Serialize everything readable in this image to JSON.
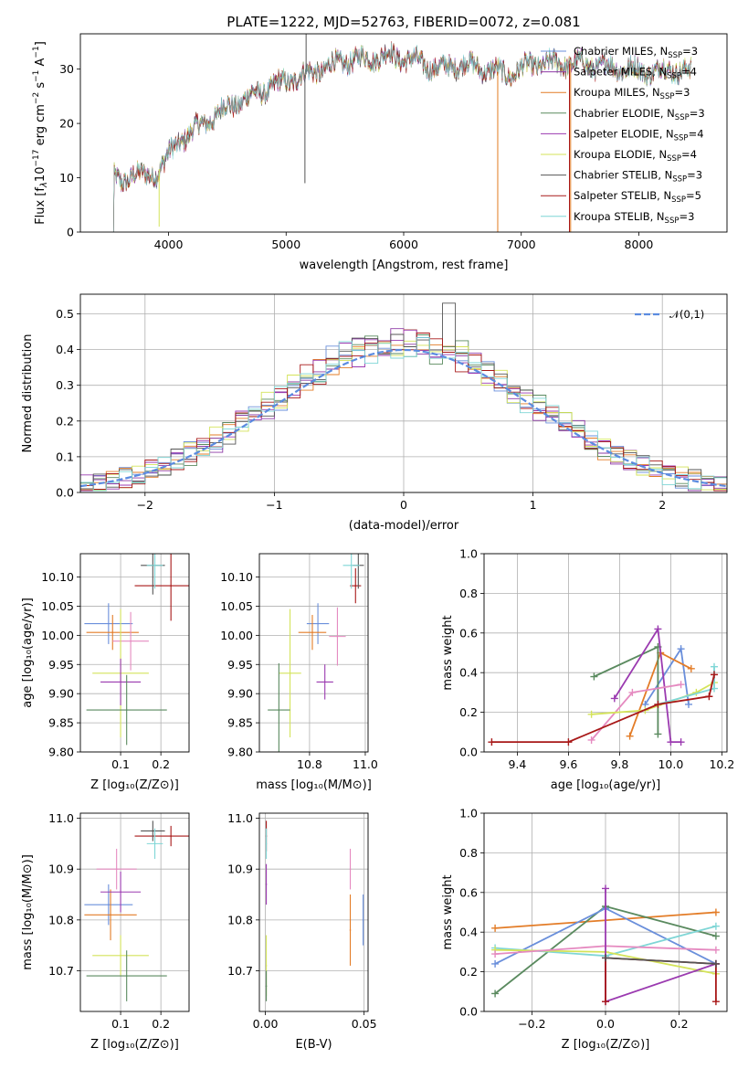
{
  "title": "PLATE=1222, MJD=52763, FIBERID=0072, z=0.081",
  "colors": {
    "Chabrier MILES": "#6a8fdb",
    "Salpeter MILES": "#8e3aa6",
    "Kroupa MILES": "#e37c27",
    "Chabrier ELODIE": "#5a8a5f",
    "Salpeter ELODIE": "#9b3ab0",
    "Kroupa ELODIE": "#d4e35a",
    "Chabrier STELIB": "#555555",
    "Salpeter STELIB": "#a81818",
    "Kroupa STELIB": "#7fd6d6",
    "normal": "#5b8be0",
    "pink": "#e58ac0"
  },
  "chart_data": [
    {
      "id": "spectrum",
      "type": "line",
      "xlabel": "wavelength [Angstrom, rest frame]",
      "ylabel_html": "Flux [f<tspan font-style='italic' font-size='10' dy='3'>λ</tspan><tspan dy='-3'>10</tspan><tspan font-size='9' dy='-6'>−17</tspan><tspan dy='6'> erg cm</tspan><tspan font-size='9' dy='-6'>−2</tspan><tspan dy='6'> s</tspan><tspan font-size='9' dy='-6'>−1</tspan><tspan dy='6'> A</tspan><tspan font-size='9' dy='-6'>−1</tspan><tspan dy='6'>]</tspan>",
      "xlim": [
        3250,
        8750
      ],
      "ylim": [
        0,
        36.5
      ],
      "xticks": [
        4000,
        5000,
        6000,
        7000,
        8000
      ],
      "yticks": [
        0,
        10,
        20,
        30
      ],
      "grid": false,
      "legend_position": "top-right",
      "legend": [
        {
          "name": "Chabrier MILES",
          "nssp": "3"
        },
        {
          "name": "Salpeter MILES",
          "nssp": "4"
        },
        {
          "name": "Kroupa MILES",
          "nssp": "3"
        },
        {
          "name": "Chabrier ELODIE",
          "nssp": "3"
        },
        {
          "name": "Salpeter ELODIE",
          "nssp": "4"
        },
        {
          "name": "Kroupa ELODIE",
          "nssp": "4"
        },
        {
          "name": "Chabrier STELIB",
          "nssp": "3"
        },
        {
          "name": "Salpeter STELIB",
          "nssp": "5"
        },
        {
          "name": "Kroupa STELIB",
          "nssp": "3"
        }
      ],
      "continuum": [
        [
          3520,
          10
        ],
        [
          3600,
          9
        ],
        [
          3700,
          11
        ],
        [
          3800,
          10
        ],
        [
          3900,
          11
        ],
        [
          4000,
          14
        ],
        [
          4100,
          17
        ],
        [
          4300,
          20
        ],
        [
          4500,
          23
        ],
        [
          4700,
          25
        ],
        [
          4900,
          27
        ],
        [
          5100,
          28.5
        ],
        [
          5300,
          30
        ],
        [
          5500,
          31.5
        ],
        [
          5700,
          32
        ],
        [
          5900,
          32.5
        ],
        [
          6100,
          31.5
        ],
        [
          6300,
          30
        ],
        [
          6500,
          31
        ],
        [
          6700,
          30
        ],
        [
          6900,
          29
        ],
        [
          7100,
          31
        ],
        [
          7300,
          31
        ],
        [
          7500,
          31
        ],
        [
          7700,
          30.5
        ],
        [
          7900,
          30
        ],
        [
          8100,
          29.5
        ],
        [
          8300,
          30
        ],
        [
          8450,
          29.5
        ]
      ],
      "spikes": [
        {
          "series": "Chabrier STELIB",
          "x": 5170,
          "y": 36.5
        },
        {
          "series": "Chabrier STELIB",
          "x": 5160,
          "y": 9
        },
        {
          "series": "Kroupa ELODIE",
          "x": 6800,
          "y": 0
        },
        {
          "series": "Kroupa MILES",
          "x": 6800,
          "y": 0
        },
        {
          "series": "Salpeter STELIB",
          "x": 7410,
          "y": 0
        },
        {
          "series": "Kroupa MILES",
          "x": 7420,
          "y": 0
        },
        {
          "series": "Kroupa ELODIE",
          "x": 3920,
          "y": 1
        }
      ]
    },
    {
      "id": "residuals",
      "type": "histogram",
      "xlabel": "(data-model)/error",
      "ylabel": "Normed distribution",
      "xlim": [
        -2.5,
        2.5
      ],
      "ylim": [
        0,
        0.555
      ],
      "xticks": [
        -2,
        -1,
        0,
        1,
        2
      ],
      "yticks": [
        0.0,
        0.1,
        0.2,
        0.3,
        0.4,
        0.5
      ],
      "grid": true,
      "legend_position": "top-right",
      "legend": "𝒩(0,1)",
      "bin_width": 0.1
    },
    {
      "id": "age-vs-Z",
      "type": "scatter",
      "xlabel": "Z [log₁₀(Z/Z⊙)]",
      "ylabel": "age  [log₁₀(age/yr)]",
      "xlim": [
        0.0,
        0.27
      ],
      "ylim": [
        9.8,
        10.14
      ],
      "xticks": [
        0.1,
        0.2
      ],
      "yticks": [
        9.8,
        9.85,
        9.9,
        9.95,
        10.0,
        10.05,
        10.1
      ],
      "points": [
        {
          "series": "Chabrier MILES",
          "x": 0.07,
          "y": 10.02,
          "xerr": 0.06,
          "yerr": 0.035
        },
        {
          "series": "Kroupa MILES",
          "x": 0.08,
          "y": 10.005,
          "xerr": 0.065,
          "yerr": 0.03
        },
        {
          "series": "Salpeter STELIB",
          "x": 0.225,
          "y": 10.085,
          "xerr": 0.09,
          "yerr": 0.06
        },
        {
          "series": "Chabrier STELIB",
          "x": 0.18,
          "y": 10.12,
          "xerr": 0.03,
          "yerr": 0.05
        },
        {
          "series": "Kroupa STELIB",
          "x": 0.185,
          "y": 10.12,
          "xerr": 0.02,
          "yerr": 0.04
        },
        {
          "series": "pink",
          "x": 0.125,
          "y": 9.99,
          "xerr": 0.045,
          "yerr": 0.05
        },
        {
          "series": "Kroupa ELODIE",
          "x": 0.1,
          "y": 9.935,
          "xerr": 0.07,
          "yerr": 0.11
        },
        {
          "series": "Salpeter ELODIE",
          "x": 0.1,
          "y": 9.92,
          "xerr": 0.05,
          "yerr": 0.04
        },
        {
          "series": "Chabrier ELODIE",
          "x": 0.115,
          "y": 9.872,
          "xerr": 0.1,
          "yerr": 0.06
        }
      ]
    },
    {
      "id": "age-vs-mass",
      "type": "scatter",
      "xlabel": "mass [log₁₀(M/M⊙)]",
      "ylabel": "",
      "xlim": [
        10.62,
        11.01
      ],
      "ylim": [
        9.8,
        10.14
      ],
      "xticks": [
        10.8,
        11.0
      ],
      "yticks": [
        9.8,
        9.85,
        9.9,
        9.95,
        10.0,
        10.05,
        10.1
      ],
      "points": [
        {
          "series": "Chabrier MILES",
          "x": 10.83,
          "y": 10.02,
          "xerr": 0.04,
          "yerr": 0.035
        },
        {
          "series": "Kroupa MILES",
          "x": 10.81,
          "y": 10.005,
          "xerr": 0.05,
          "yerr": 0.03
        },
        {
          "series": "Salpeter STELIB",
          "x": 10.965,
          "y": 10.085,
          "xerr": 0.02,
          "yerr": 0.03
        },
        {
          "series": "Chabrier STELIB",
          "x": 10.975,
          "y": 10.12,
          "xerr": 0.02,
          "yerr": 0.04
        },
        {
          "series": "Kroupa STELIB",
          "x": 10.95,
          "y": 10.12,
          "xerr": 0.03,
          "yerr": 0.04
        },
        {
          "series": "pink",
          "x": 10.9,
          "y": 9.998,
          "xerr": 0.03,
          "yerr": 0.05
        },
        {
          "series": "Kroupa ELODIE",
          "x": 10.73,
          "y": 9.935,
          "xerr": 0.04,
          "yerr": 0.11
        },
        {
          "series": "Salpeter ELODIE",
          "x": 10.855,
          "y": 9.92,
          "xerr": 0.03,
          "yerr": 0.03
        },
        {
          "series": "Chabrier ELODIE",
          "x": 10.69,
          "y": 9.872,
          "xerr": 0.04,
          "yerr": 0.08
        }
      ]
    },
    {
      "id": "weight-vs-age",
      "type": "line",
      "xlabel": "age  [log₁₀(age/yr)]",
      "ylabel": "mass weight",
      "xlim": [
        9.27,
        10.22
      ],
      "ylim": [
        0.0,
        1.0
      ],
      "xticks": [
        9.4,
        9.6,
        9.8,
        10.0,
        10.2
      ],
      "yticks": [
        0.0,
        0.2,
        0.4,
        0.6,
        0.8,
        1.0
      ],
      "series": [
        {
          "name": "Chabrier MILES",
          "x": [
            9.9,
            10.04,
            10.07
          ],
          "y": [
            0.24,
            0.52,
            0.24
          ]
        },
        {
          "name": "Kroupa MILES",
          "x": [
            9.84,
            9.96,
            10.08
          ],
          "y": [
            0.08,
            0.5,
            0.42
          ]
        },
        {
          "name": "Chabrier ELODIE",
          "x": [
            9.7,
            9.95,
            9.95
          ],
          "y": [
            0.38,
            0.53,
            0.09
          ]
        },
        {
          "name": "Salpeter ELODIE",
          "x": [
            9.78,
            9.95,
            10.0,
            10.04
          ],
          "y": [
            0.27,
            0.62,
            0.05,
            0.05
          ]
        },
        {
          "name": "pink",
          "x": [
            9.69,
            9.85,
            10.04
          ],
          "y": [
            0.06,
            0.3,
            0.34
          ]
        },
        {
          "name": "Kroupa ELODIE",
          "x": [
            9.69,
            9.9,
            10.1,
            10.17
          ],
          "y": [
            0.19,
            0.21,
            0.3,
            0.35
          ]
        },
        {
          "name": "Kroupa STELIB",
          "x": [
            9.95,
            10.17,
            10.17
          ],
          "y": [
            0.24,
            0.32,
            0.43
          ]
        },
        {
          "name": "Salpeter STELIB",
          "x": [
            9.3,
            9.6,
            9.95,
            10.15,
            10.17
          ],
          "y": [
            0.05,
            0.05,
            0.24,
            0.28,
            0.39
          ]
        }
      ]
    },
    {
      "id": "mass-vs-Z",
      "type": "scatter",
      "xlabel": "Z [log₁₀(Z/Z⊙)]",
      "ylabel": "mass [log₁₀(M/M⊙)]",
      "xlim": [
        0.0,
        0.27
      ],
      "ylim": [
        10.62,
        11.01
      ],
      "xticks": [
        0.1,
        0.2
      ],
      "yticks": [
        10.7,
        10.8,
        10.9,
        11.0
      ],
      "points": [
        {
          "series": "Chabrier MILES",
          "x": 0.07,
          "y": 10.83,
          "xerr": 0.06,
          "yerr": 0.04
        },
        {
          "series": "Kroupa MILES",
          "x": 0.075,
          "y": 10.81,
          "xerr": 0.065,
          "yerr": 0.05
        },
        {
          "series": "Salpeter STELIB",
          "x": 0.225,
          "y": 10.965,
          "xerr": 0.09,
          "yerr": 0.02
        },
        {
          "series": "Chabrier STELIB",
          "x": 0.18,
          "y": 10.975,
          "xerr": 0.03,
          "yerr": 0.02
        },
        {
          "series": "Kroupa STELIB",
          "x": 0.185,
          "y": 10.95,
          "xerr": 0.02,
          "yerr": 0.03
        },
        {
          "series": "pink",
          "x": 0.09,
          "y": 10.9,
          "xerr": 0.05,
          "yerr": 0.04
        },
        {
          "series": "Salpeter ELODIE",
          "x": 0.1,
          "y": 10.855,
          "xerr": 0.05,
          "yerr": 0.04
        },
        {
          "series": "Kroupa ELODIE",
          "x": 0.1,
          "y": 10.73,
          "xerr": 0.07,
          "yerr": 0.04
        },
        {
          "series": "Chabrier ELODIE",
          "x": 0.115,
          "y": 10.69,
          "xerr": 0.1,
          "yerr": 0.05
        }
      ]
    },
    {
      "id": "mass-vs-ebv",
      "type": "scatter",
      "xlabel": "E(B-V)",
      "ylabel": "",
      "xlim": [
        -0.003,
        0.052
      ],
      "ylim": [
        10.62,
        11.01
      ],
      "xticks": [
        0.0,
        0.05
      ],
      "yticks": [
        10.7,
        10.8,
        10.9,
        11.0
      ],
      "points": [
        {
          "series": "Salpeter STELIB",
          "x": 0.0005,
          "y": 10.965,
          "xerr": 0,
          "yerr": 0.03
        },
        {
          "series": "Kroupa STELIB",
          "x": 0.0005,
          "y": 10.95,
          "xerr": 0,
          "yerr": 0.03
        },
        {
          "series": "Salpeter ELODIE",
          "x": 0.0005,
          "y": 10.87,
          "xerr": 0,
          "yerr": 0.04
        },
        {
          "series": "Kroupa ELODIE",
          "x": 0.0005,
          "y": 10.71,
          "xerr": 0,
          "yerr": 0.06
        },
        {
          "series": "Chabrier ELODIE",
          "x": 0.0005,
          "y": 10.67,
          "xerr": 0,
          "yerr": 0.03
        },
        {
          "series": "pink",
          "x": 0.043,
          "y": 10.9,
          "xerr": 0,
          "yerr": 0.04
        },
        {
          "series": "Kroupa MILES",
          "x": 0.043,
          "y": 10.78,
          "xerr": 0,
          "yerr": 0.07
        },
        {
          "series": "Chabrier MILES",
          "x": 0.0495,
          "y": 10.8,
          "xerr": 0,
          "yerr": 0.05
        }
      ]
    },
    {
      "id": "weight-vs-Z",
      "type": "line",
      "xlabel": "Z [log₁₀(Z/Z⊙)]",
      "ylabel": "mass weight",
      "xlim": [
        -0.33,
        0.33
      ],
      "ylim": [
        0.0,
        1.0
      ],
      "xticks": [
        -0.2,
        0.0,
        0.2
      ],
      "yticks": [
        0.0,
        0.2,
        0.4,
        0.6,
        0.8,
        1.0
      ],
      "series": [
        {
          "name": "Kroupa MILES",
          "x": [
            -0.3,
            0.3
          ],
          "y": [
            0.42,
            0.5
          ]
        },
        {
          "name": "Chabrier ELODIE",
          "x": [
            -0.3,
            0.0,
            0.3
          ],
          "y": [
            0.09,
            0.53,
            0.38
          ]
        },
        {
          "name": "Chabrier MILES",
          "x": [
            -0.3,
            0.0,
            0.3
          ],
          "y": [
            0.24,
            0.52,
            0.24
          ]
        },
        {
          "name": "Kroupa STELIB",
          "x": [
            -0.3,
            0.0,
            0.3
          ],
          "y": [
            0.32,
            0.28,
            0.43
          ]
        },
        {
          "name": "Kroupa ELODIE",
          "x": [
            -0.3,
            0.0,
            0.3
          ],
          "y": [
            0.31,
            0.3,
            0.19
          ]
        },
        {
          "name": "pink",
          "x": [
            -0.3,
            0.0,
            0.3
          ],
          "y": [
            0.29,
            0.33,
            0.31
          ]
        },
        {
          "name": "Salpeter ELODIE",
          "x": [
            0.0,
            0.0,
            0.3
          ],
          "y": [
            0.62,
            0.05,
            0.24
          ]
        },
        {
          "name": "Salpeter STELIB",
          "x": [
            0.0,
            0.0,
            0.3,
            0.3
          ],
          "y": [
            0.05,
            0.27,
            0.24,
            0.05
          ]
        },
        {
          "name": "Chabrier STELIB",
          "x": [
            0.0,
            0.3
          ],
          "y": [
            0.27,
            0.24
          ]
        }
      ]
    }
  ]
}
